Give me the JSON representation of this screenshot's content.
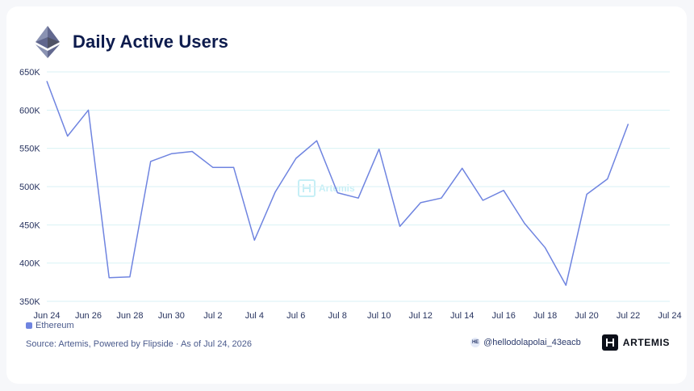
{
  "header": {
    "title": "Daily Active Users",
    "logo_icon": "ethereum-icon"
  },
  "chart_data": {
    "type": "line",
    "title": "Daily Active Users",
    "xlabel": "",
    "ylabel": "",
    "x": [
      "Jun 24",
      "Jun 25",
      "Jun 26",
      "Jun 27",
      "Jun 28",
      "Jun 29",
      "Jun 30",
      "Jul 1",
      "Jul 2",
      "Jul 3",
      "Jul 4",
      "Jul 5",
      "Jul 6",
      "Jul 7",
      "Jul 8",
      "Jul 9",
      "Jul 10",
      "Jul 11",
      "Jul 12",
      "Jul 13",
      "Jul 14",
      "Jul 15",
      "Jul 16",
      "Jul 17",
      "Jul 18",
      "Jul 19",
      "Jul 20",
      "Jul 21",
      "Jul 22"
    ],
    "series": [
      {
        "name": "Ethereum",
        "color": "#6f84e0",
        "values": [
          638000,
          566000,
          600000,
          381000,
          382000,
          533000,
          543000,
          546000,
          525000,
          525000,
          430000,
          493000,
          537000,
          560000,
          492000,
          485000,
          549000,
          448000,
          479000,
          485000,
          524000,
          482000,
          495000,
          452000,
          420000,
          371000,
          490000,
          510000,
          582000
        ]
      }
    ],
    "x_ticks": [
      "Jun 24",
      "Jun 26",
      "Jun 28",
      "Jun 30",
      "Jul 2",
      "Jul 4",
      "Jul 6",
      "Jul 8",
      "Jul 10",
      "Jul 12",
      "Jul 14",
      "Jul 16",
      "Jul 18",
      "Jul 20",
      "Jul 22",
      "Jul 24"
    ],
    "y_ticks": [
      350000,
      400000,
      450000,
      500000,
      550000,
      600000,
      650000
    ],
    "y_tick_labels": [
      "350K",
      "400K",
      "450K",
      "500K",
      "550K",
      "600K",
      "650K"
    ],
    "ylim": [
      350000,
      650000
    ],
    "xlim": [
      "Jun 24",
      "Jul 24"
    ],
    "grid": true,
    "legend_position": "bottom-left"
  },
  "legend": {
    "label": "Ethereum",
    "color": "#6f84e0"
  },
  "footer": {
    "source": "Source: Artemis, Powered by Flipside · As of Jul 24, 2026",
    "handle_initials": "HE",
    "handle": "@hellodolapolai_43eacb",
    "brand": "ARTEMIS"
  },
  "watermark": {
    "text": "Artemis"
  },
  "colors": {
    "title": "#0d1b4d",
    "line": "#6f84e0",
    "grid": "#d9f2f5",
    "text": "#27335f"
  }
}
